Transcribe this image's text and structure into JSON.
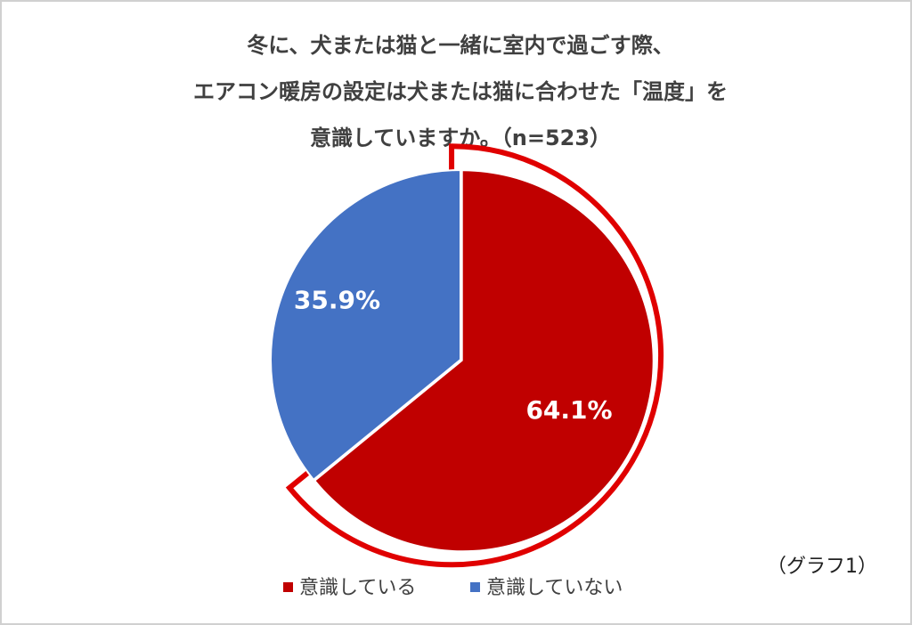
{
  "chart_data": {
    "type": "pie",
    "title": [
      "冬に、犬または猫と一緒に室内で過ごす際、",
      "エアコン暖房の設定は犬または猫に合わせた「温度」を",
      "意識していますか。（n=523）"
    ],
    "categories": [
      "意識している",
      "意識していない"
    ],
    "values": [
      64.1,
      35.9
    ],
    "value_labels": [
      "64.1%",
      "35.9%"
    ],
    "colors": [
      "#c00000",
      "#4472c4"
    ],
    "highlight_color": "#e00000",
    "note": "（グラフ1）"
  }
}
